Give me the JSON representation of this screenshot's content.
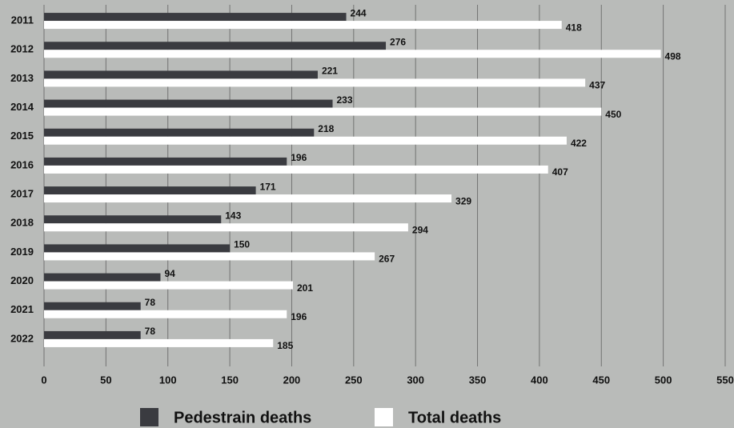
{
  "chart_data": {
    "type": "bar",
    "orientation": "horizontal",
    "categories": [
      "2011",
      "2012",
      "2013",
      "2014",
      "2015",
      "2016",
      "2017",
      "2018",
      "2019",
      "2020",
      "2021",
      "2022"
    ],
    "series": [
      {
        "name": "Pedestrain deaths",
        "color": "#3a3b40",
        "values": [
          244,
          276,
          221,
          233,
          218,
          196,
          171,
          143,
          150,
          94,
          78,
          78
        ]
      },
      {
        "name": "Total deaths",
        "color": "#ffffff",
        "values": [
          418,
          498,
          437,
          450,
          422,
          407,
          329,
          294,
          267,
          201,
          196,
          185
        ]
      }
    ],
    "xlim": [
      0,
      550
    ],
    "xticks": [
      0,
      50,
      100,
      150,
      200,
      250,
      300,
      350,
      400,
      450,
      500,
      550
    ],
    "grid": true,
    "legend": "bottom"
  }
}
